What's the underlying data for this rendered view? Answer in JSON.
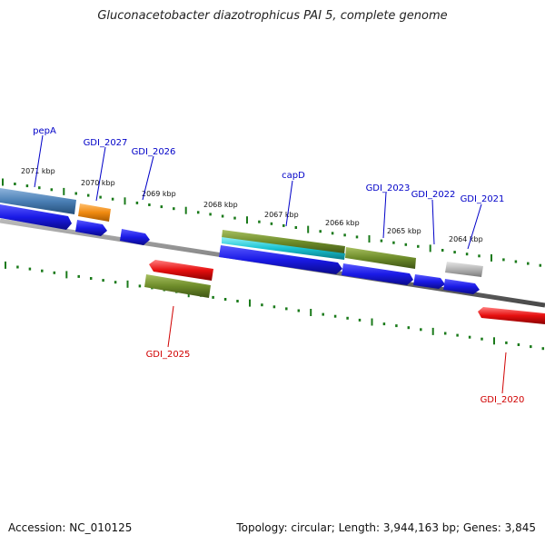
{
  "title": "Gluconacetobacter diazotrophicus PAI 5, complete genome",
  "accession": "Accession: NC_010125",
  "summary": "Topology: circular; Length: 3,944,163 bp; Genes: 3,845",
  "colors": {
    "backbone": "#7f7f7f",
    "forward_label": "#0000c8",
    "reverse_label": "#d00000",
    "tick": "#1a7a1a",
    "blue": "#1a1ae6",
    "steel_blue": "#4a7fb5",
    "orange": "#f08a10",
    "olive": "#6e8c2a",
    "cyan": "#19c3d2",
    "red": "#e60f0f",
    "gray": "#b4b4b4"
  },
  "kbp_labels": [
    "2071 kbp",
    "2070 kbp",
    "2069 kbp",
    "2068 kbp",
    "2067 kbp",
    "2066 kbp",
    "2065 kbp",
    "2064 kbp"
  ],
  "gene_labels": [
    {
      "text": "pepA",
      "strand": "forward"
    },
    {
      "text": "GDI_2027",
      "strand": "forward"
    },
    {
      "text": "GDI_2026",
      "strand": "forward"
    },
    {
      "text": "capD",
      "strand": "forward"
    },
    {
      "text": "GDI_2023",
      "strand": "forward"
    },
    {
      "text": "GDI_2022",
      "strand": "forward"
    },
    {
      "text": "GDI_2021",
      "strand": "forward"
    },
    {
      "text": "GDI_2025",
      "strand": "reverse"
    },
    {
      "text": "GDI_2020",
      "strand": "reverse"
    }
  ]
}
